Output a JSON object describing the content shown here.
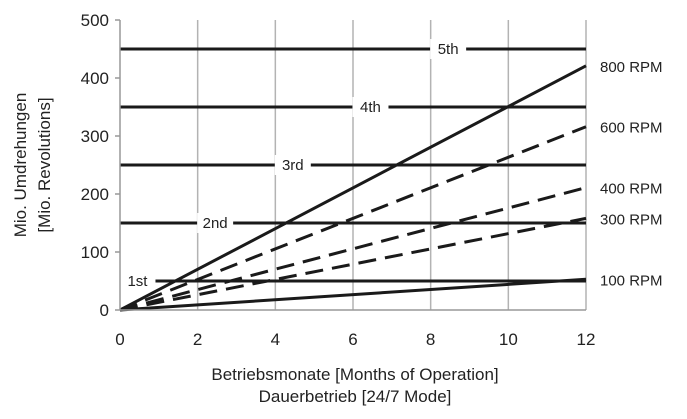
{
  "chart_data": {
    "type": "line",
    "xlabel": [
      "Betriebsmonate [Months of Operation]",
      "Dauerbetrieb [24/7 Mode]"
    ],
    "ylabel": [
      "Mio. Umdrehungen",
      "[Mio. Revolutions]"
    ],
    "xlim": [
      0,
      12
    ],
    "ylim": [
      0,
      500
    ],
    "xticks": [
      0,
      2,
      4,
      6,
      8,
      10,
      12
    ],
    "yticks": [
      0,
      100,
      200,
      300,
      400,
      500
    ],
    "grid": "vertical",
    "series": [
      {
        "name": "800 RPM",
        "style": "solid",
        "x": [
          0,
          12
        ],
        "y": [
          0,
          421
        ]
      },
      {
        "name": "600 RPM",
        "style": "dashed",
        "x": [
          0,
          12
        ],
        "y": [
          0,
          316
        ]
      },
      {
        "name": "400 RPM",
        "style": "dashed",
        "x": [
          0,
          12
        ],
        "y": [
          0,
          211
        ]
      },
      {
        "name": "300 RPM",
        "style": "dashed",
        "x": [
          0,
          12
        ],
        "y": [
          0,
          158
        ]
      },
      {
        "name": "100 RPM",
        "style": "solid",
        "x": [
          0,
          12
        ],
        "y": [
          0,
          53
        ]
      }
    ],
    "reference_lines": [
      {
        "name": "1st",
        "y": 50,
        "label_x": 0.45
      },
      {
        "name": "2nd",
        "y": 150,
        "label_x": 2.45
      },
      {
        "name": "3rd",
        "y": 250,
        "label_x": 4.45
      },
      {
        "name": "4th",
        "y": 350,
        "label_x": 6.45
      },
      {
        "name": "5th",
        "y": 450,
        "label_x": 8.45
      }
    ]
  }
}
